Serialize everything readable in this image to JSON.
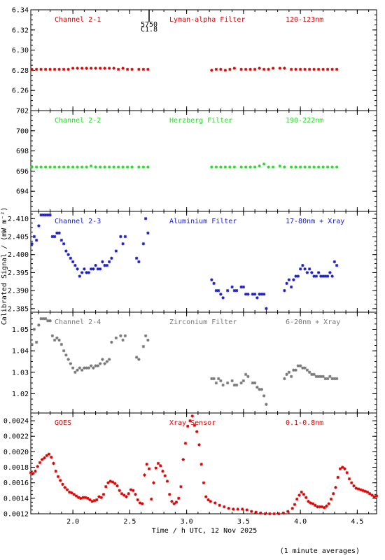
{
  "xlabel": "Time / h UTC, 12 Nov 2025",
  "ylabel": "Calibrated Signal / (mW m⁻²)",
  "footer": "(1 minute averages)",
  "flare": {
    "label_a": "5750",
    "label_b": "C1.8",
    "x": 2.67
  },
  "xlim": [
    1.63,
    4.67
  ],
  "xticks": [
    2.0,
    2.5,
    3.0,
    3.5,
    4.0,
    4.5
  ],
  "chart_data": [
    {
      "type": "scatter",
      "channel": "Channel 2-1",
      "filter": "Lyman-alpha Filter",
      "band": "120-123nm",
      "color": "#dd0000",
      "ylim": [
        6.24,
        6.34
      ],
      "yticks": [
        6.26,
        6.28,
        6.3,
        6.32,
        6.34
      ],
      "series": [
        {
          "name": "Channel 2-1",
          "x": [
            1.64,
            1.68,
            1.72,
            1.76,
            1.8,
            1.84,
            1.88,
            1.92,
            1.96,
            2.0,
            2.04,
            2.08,
            2.12,
            2.16,
            2.2,
            2.24,
            2.28,
            2.32,
            2.36,
            2.4,
            2.44,
            2.48,
            2.52,
            2.58,
            2.62,
            2.66,
            3.22,
            3.26,
            3.3,
            3.34,
            3.38,
            3.42,
            3.48,
            3.52,
            3.56,
            3.6,
            3.64,
            3.68,
            3.72,
            3.76,
            3.82,
            3.86,
            3.92,
            3.96,
            4.0,
            4.04,
            4.08,
            4.12,
            4.16,
            4.2,
            4.24,
            4.28,
            4.32
          ],
          "y": [
            6.281,
            6.281,
            6.281,
            6.281,
            6.281,
            6.281,
            6.281,
            6.281,
            6.281,
            6.282,
            6.282,
            6.282,
            6.282,
            6.282,
            6.282,
            6.282,
            6.282,
            6.282,
            6.282,
            6.281,
            6.282,
            6.281,
            6.281,
            6.281,
            6.281,
            6.281,
            6.28,
            6.281,
            6.281,
            6.28,
            6.281,
            6.282,
            6.281,
            6.281,
            6.281,
            6.281,
            6.282,
            6.281,
            6.281,
            6.282,
            6.282,
            6.282,
            6.281,
            6.281,
            6.281,
            6.281,
            6.281,
            6.281,
            6.281,
            6.281,
            6.281,
            6.281,
            6.281
          ]
        }
      ]
    },
    {
      "type": "scatter",
      "channel": "Channel 2-2",
      "filter": "Herzberg Filter",
      "band": "190-222nm",
      "color": "#22dd22",
      "ylim": [
        692,
        702
      ],
      "yticks": [
        694,
        696,
        698,
        700,
        702
      ],
      "series": [
        {
          "name": "Channel 2-2",
          "x": [
            1.64,
            1.68,
            1.72,
            1.76,
            1.8,
            1.84,
            1.88,
            1.92,
            1.96,
            2.0,
            2.04,
            2.08,
            2.12,
            2.16,
            2.2,
            2.24,
            2.28,
            2.32,
            2.36,
            2.4,
            2.44,
            2.48,
            2.52,
            2.58,
            2.62,
            2.66,
            3.22,
            3.26,
            3.3,
            3.34,
            3.38,
            3.42,
            3.48,
            3.52,
            3.56,
            3.6,
            3.64,
            3.68,
            3.72,
            3.76,
            3.82,
            3.86,
            3.92,
            3.96,
            4.0,
            4.04,
            4.08,
            4.12,
            4.16,
            4.2,
            4.24,
            4.28,
            4.32
          ],
          "y": [
            696.4,
            696.4,
            696.4,
            696.4,
            696.4,
            696.4,
            696.4,
            696.4,
            696.4,
            696.4,
            696.4,
            696.4,
            696.4,
            696.5,
            696.4,
            696.4,
            696.4,
            696.4,
            696.4,
            696.4,
            696.4,
            696.4,
            696.4,
            696.4,
            696.4,
            696.4,
            696.4,
            696.4,
            696.4,
            696.4,
            696.4,
            696.4,
            696.4,
            696.4,
            696.4,
            696.4,
            696.5,
            696.7,
            696.4,
            696.4,
            696.5,
            696.4,
            696.4,
            696.4,
            696.4,
            696.4,
            696.4,
            696.4,
            696.4,
            696.4,
            696.4,
            696.4,
            696.4
          ]
        }
      ]
    },
    {
      "type": "scatter",
      "channel": "Channel 2-3",
      "filter": "Aluminium Filter",
      "band": "17-80nm + Xray",
      "color": "#1a1acc",
      "ylim": [
        2.384,
        2.412
      ],
      "yticks": [
        2.385,
        2.39,
        2.395,
        2.4,
        2.405,
        2.41
      ],
      "series": [
        {
          "name": "Channel 2-3",
          "x": [
            1.64,
            1.66,
            1.68,
            1.7,
            1.72,
            1.74,
            1.76,
            1.78,
            1.8,
            1.82,
            1.84,
            1.86,
            1.88,
            1.9,
            1.92,
            1.94,
            1.96,
            1.98,
            2.0,
            2.02,
            2.04,
            2.06,
            2.08,
            2.1,
            2.12,
            2.14,
            2.16,
            2.18,
            2.2,
            2.22,
            2.24,
            2.26,
            2.28,
            2.3,
            2.32,
            2.34,
            2.38,
            2.42,
            2.44,
            2.46,
            2.56,
            2.58,
            2.62,
            2.64,
            2.66,
            3.22,
            3.24,
            3.26,
            3.28,
            3.3,
            3.32,
            3.36,
            3.4,
            3.42,
            3.44,
            3.48,
            3.5,
            3.52,
            3.54,
            3.58,
            3.6,
            3.62,
            3.64,
            3.66,
            3.68,
            3.7,
            3.86,
            3.88,
            3.9,
            3.92,
            3.94,
            3.96,
            3.98,
            4.0,
            4.02,
            4.04,
            4.06,
            4.08,
            4.1,
            4.12,
            4.14,
            4.16,
            4.18,
            4.2,
            4.22,
            4.24,
            4.26,
            4.28,
            4.3,
            4.32
          ],
          "y": [
            2.403,
            2.405,
            2.404,
            2.408,
            2.411,
            2.411,
            2.411,
            2.411,
            2.411,
            2.405,
            2.405,
            2.406,
            2.406,
            2.404,
            2.403,
            2.401,
            2.4,
            2.399,
            2.398,
            2.397,
            2.396,
            2.394,
            2.395,
            2.396,
            2.395,
            2.395,
            2.396,
            2.396,
            2.397,
            2.396,
            2.396,
            2.398,
            2.397,
            2.397,
            2.398,
            2.399,
            2.401,
            2.405,
            2.403,
            2.405,
            2.399,
            2.398,
            2.403,
            2.41,
            2.406,
            2.393,
            2.392,
            2.39,
            2.39,
            2.389,
            2.388,
            2.39,
            2.391,
            2.39,
            2.39,
            2.391,
            2.391,
            2.389,
            2.389,
            2.389,
            2.389,
            2.388,
            2.389,
            2.389,
            2.389,
            2.385,
            2.39,
            2.392,
            2.393,
            2.391,
            2.393,
            2.394,
            2.394,
            2.396,
            2.397,
            2.396,
            2.395,
            2.396,
            2.395,
            2.394,
            2.394,
            2.395,
            2.394,
            2.394,
            2.394,
            2.394,
            2.395,
            2.394,
            2.398,
            2.397
          ]
        }
      ]
    },
    {
      "type": "scatter",
      "channel": "Channel 2-4",
      "filter": "Zirconium Filter",
      "band": "6-20nm + Xray",
      "color": "#777777",
      "ylim": [
        1.011,
        1.058
      ],
      "yticks": [
        1.02,
        1.03,
        1.04,
        1.05
      ],
      "series": [
        {
          "name": "Channel 2-4",
          "x": [
            1.64,
            1.66,
            1.68,
            1.7,
            1.72,
            1.74,
            1.76,
            1.78,
            1.8,
            1.82,
            1.84,
            1.86,
            1.88,
            1.9,
            1.92,
            1.94,
            1.96,
            1.98,
            2.0,
            2.02,
            2.04,
            2.06,
            2.08,
            2.1,
            2.12,
            2.14,
            2.16,
            2.18,
            2.2,
            2.22,
            2.24,
            2.26,
            2.28,
            2.3,
            2.32,
            2.34,
            2.38,
            2.42,
            2.44,
            2.46,
            2.56,
            2.58,
            2.62,
            2.64,
            2.66,
            3.22,
            3.24,
            3.26,
            3.28,
            3.3,
            3.32,
            3.36,
            3.4,
            3.42,
            3.44,
            3.48,
            3.5,
            3.52,
            3.54,
            3.58,
            3.6,
            3.62,
            3.64,
            3.66,
            3.68,
            3.7,
            3.86,
            3.88,
            3.9,
            3.92,
            3.94,
            3.96,
            3.98,
            4.0,
            4.02,
            4.04,
            4.06,
            4.08,
            4.1,
            4.12,
            4.14,
            4.16,
            4.18,
            4.2,
            4.22,
            4.24,
            4.26,
            4.28,
            4.3,
            4.32
          ],
          "y": [
            1.043,
            1.05,
            1.044,
            1.052,
            1.055,
            1.055,
            1.055,
            1.054,
            1.054,
            1.047,
            1.045,
            1.046,
            1.045,
            1.043,
            1.04,
            1.038,
            1.036,
            1.034,
            1.032,
            1.03,
            1.031,
            1.032,
            1.031,
            1.032,
            1.032,
            1.032,
            1.033,
            1.032,
            1.033,
            1.033,
            1.034,
            1.036,
            1.034,
            1.035,
            1.036,
            1.044,
            1.046,
            1.047,
            1.045,
            1.047,
            1.037,
            1.036,
            1.042,
            1.047,
            1.045,
            1.027,
            1.027,
            1.025,
            1.027,
            1.026,
            1.024,
            1.025,
            1.026,
            1.024,
            1.024,
            1.025,
            1.026,
            1.029,
            1.028,
            1.025,
            1.025,
            1.023,
            1.022,
            1.022,
            1.019,
            1.015,
            1.027,
            1.029,
            1.03,
            1.028,
            1.031,
            1.031,
            1.033,
            1.033,
            1.032,
            1.032,
            1.031,
            1.03,
            1.029,
            1.029,
            1.028,
            1.028,
            1.028,
            1.028,
            1.027,
            1.027,
            1.028,
            1.027,
            1.027,
            1.027
          ]
        }
      ]
    },
    {
      "type": "scatter",
      "channel": "GOES",
      "filter": "Xray Sensor",
      "band": "0.1-0.8nm",
      "color": "#dd0000",
      "ylim": [
        0.0012,
        0.0025
      ],
      "yticks": [
        0.0012,
        0.0014,
        0.0016,
        0.0018,
        0.002,
        0.0022,
        0.0024
      ],
      "series": [
        {
          "name": "GOES",
          "x": [
            1.63,
            1.65,
            1.67,
            1.69,
            1.71,
            1.73,
            1.75,
            1.77,
            1.79,
            1.81,
            1.83,
            1.85,
            1.87,
            1.89,
            1.91,
            1.93,
            1.95,
            1.97,
            1.99,
            2.01,
            2.03,
            2.05,
            2.07,
            2.09,
            2.11,
            2.13,
            2.15,
            2.17,
            2.19,
            2.21,
            2.23,
            2.25,
            2.27,
            2.29,
            2.31,
            2.33,
            2.35,
            2.37,
            2.39,
            2.41,
            2.43,
            2.45,
            2.47,
            2.49,
            2.51,
            2.53,
            2.55,
            2.57,
            2.59,
            2.61,
            2.63,
            2.65,
            2.67,
            2.69,
            2.71,
            2.73,
            2.75,
            2.77,
            2.79,
            2.81,
            2.83,
            2.85,
            2.87,
            2.89,
            2.91,
            2.93,
            2.95,
            2.97,
            2.99,
            3.01,
            3.03,
            3.05,
            3.07,
            3.09,
            3.11,
            3.13,
            3.15,
            3.17,
            3.19,
            3.21,
            3.25,
            3.29,
            3.33,
            3.37,
            3.41,
            3.45,
            3.49,
            3.53,
            3.57,
            3.61,
            3.65,
            3.69,
            3.73,
            3.77,
            3.81,
            3.85,
            3.89,
            3.93,
            3.95,
            3.97,
            3.99,
            4.01,
            4.03,
            4.05,
            4.07,
            4.09,
            4.11,
            4.13,
            4.15,
            4.17,
            4.19,
            4.21,
            4.23,
            4.25,
            4.27,
            4.29,
            4.31,
            4.33,
            4.35,
            4.37,
            4.39,
            4.41,
            4.43,
            4.45,
            4.47,
            4.49,
            4.51,
            4.53,
            4.55,
            4.57,
            4.59,
            4.61,
            4.63,
            4.65,
            4.67
          ],
          "y": [
            0.00173,
            0.00172,
            0.00175,
            0.00181,
            0.00186,
            0.0019,
            0.00192,
            0.00195,
            0.00197,
            0.00193,
            0.00185,
            0.00175,
            0.00168,
            0.00163,
            0.00158,
            0.00154,
            0.00151,
            0.00148,
            0.00147,
            0.00145,
            0.00143,
            0.00141,
            0.0014,
            0.00141,
            0.00141,
            0.0014,
            0.00138,
            0.00136,
            0.00137,
            0.00138,
            0.00142,
            0.00141,
            0.00145,
            0.00155,
            0.0016,
            0.00162,
            0.00161,
            0.00159,
            0.00156,
            0.0015,
            0.00146,
            0.00144,
            0.00142,
            0.00146,
            0.00151,
            0.0015,
            0.00145,
            0.00138,
            0.00134,
            0.00133,
            0.0017,
            0.00184,
            0.00178,
            0.00139,
            0.0016,
            0.00179,
            0.00185,
            0.00182,
            0.00175,
            0.00169,
            0.00162,
            0.00145,
            0.00136,
            0.00133,
            0.00135,
            0.0014,
            0.00155,
            0.0019,
            0.00211,
            0.00233,
            0.0024,
            0.00246,
            0.00234,
            0.00226,
            0.00209,
            0.00184,
            0.0016,
            0.00142,
            0.00138,
            0.00136,
            0.00134,
            0.00131,
            0.00129,
            0.00127,
            0.00126,
            0.00126,
            0.00126,
            0.00125,
            0.00123,
            0.00122,
            0.00121,
            0.0012,
            0.0012,
            0.0012,
            0.0012,
            0.00121,
            0.00123,
            0.00127,
            0.00132,
            0.00139,
            0.00144,
            0.00148,
            0.00145,
            0.00141,
            0.00136,
            0.00134,
            0.00133,
            0.00131,
            0.00129,
            0.00129,
            0.00129,
            0.00128,
            0.0013,
            0.00133,
            0.00139,
            0.00146,
            0.00154,
            0.00167,
            0.00178,
            0.0018,
            0.00178,
            0.00173,
            0.00165,
            0.0016,
            0.00156,
            0.00153,
            0.00152,
            0.00151,
            0.0015,
            0.00149,
            0.00148,
            0.00146,
            0.00144,
            0.00142,
            0.00143
          ]
        }
      ]
    }
  ]
}
